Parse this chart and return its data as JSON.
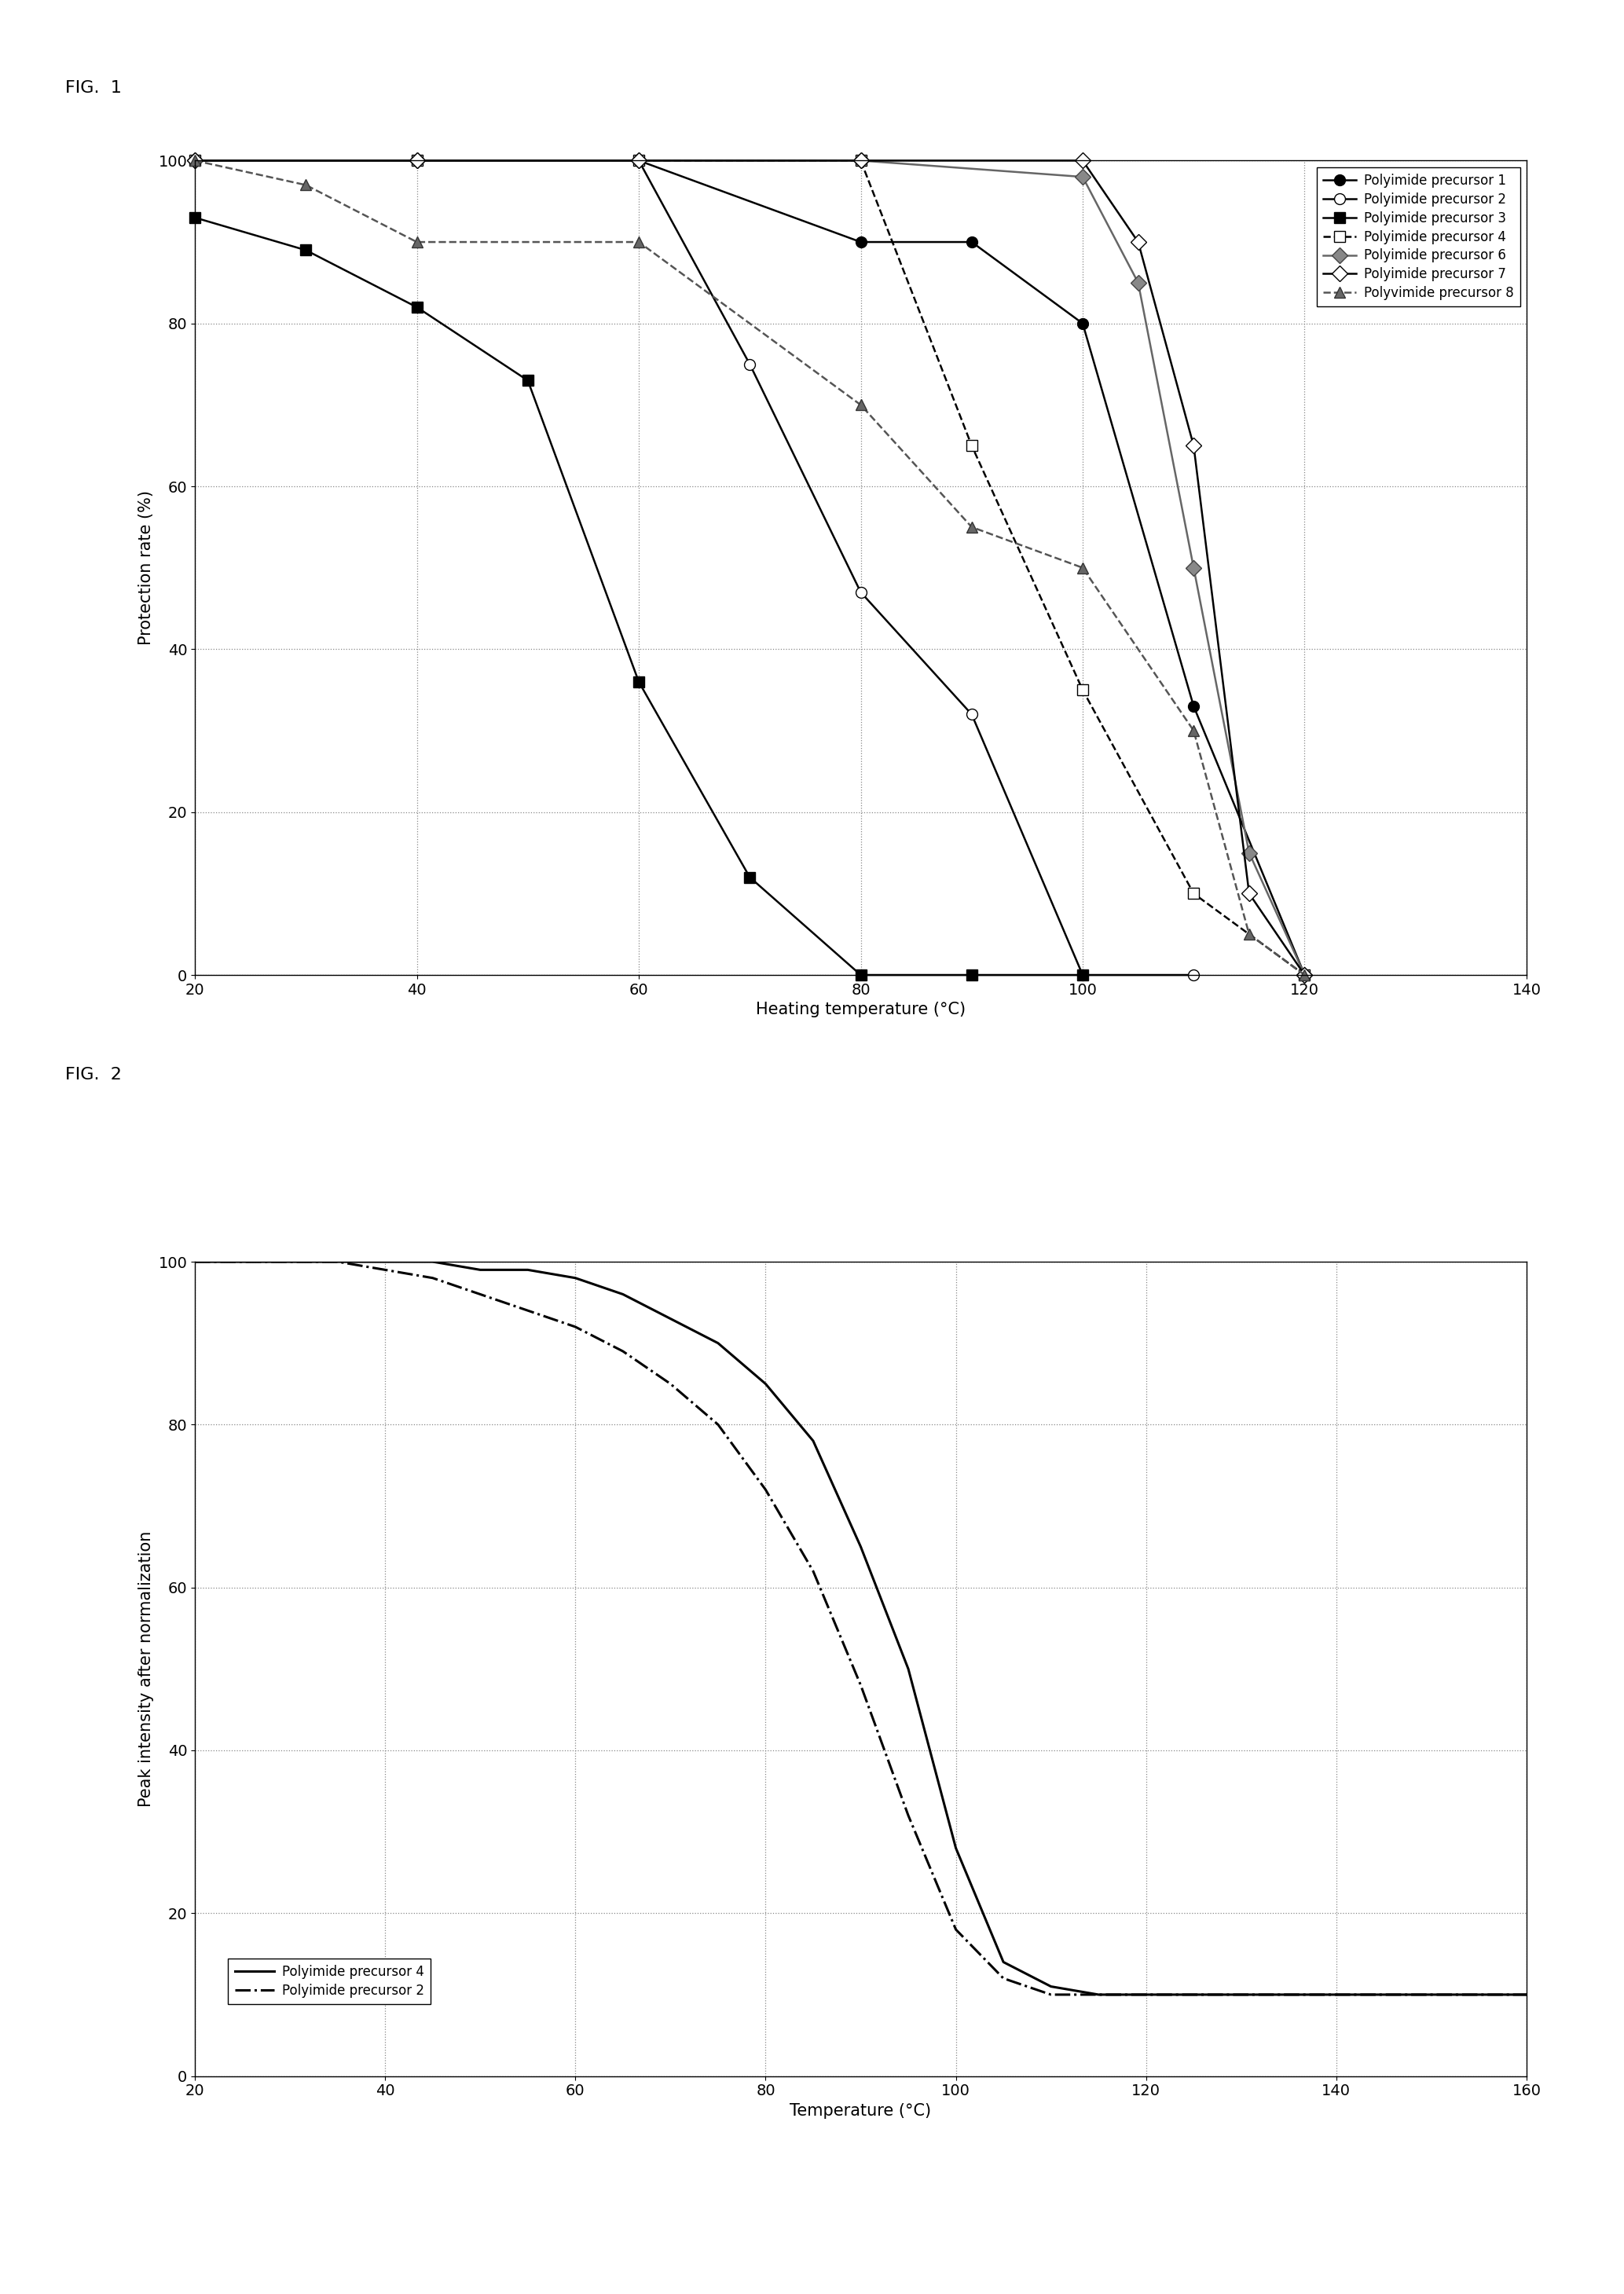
{
  "fig1": {
    "fig_label": "FIG.  1",
    "xlabel": "Heating temperature (°C)",
    "ylabel": "Protection rate (%)",
    "xlim": [
      20,
      140
    ],
    "ylim": [
      0,
      100
    ],
    "xticks": [
      20,
      40,
      60,
      80,
      100,
      120,
      140
    ],
    "yticks": [
      0,
      20,
      40,
      60,
      80,
      100
    ],
    "series": [
      {
        "label": "Polyimide precursor 1",
        "marker": "o",
        "mfc": "black",
        "mec": "black",
        "ms": 10,
        "ls": "-",
        "color": "black",
        "lw": 1.8,
        "x": [
          20,
          40,
          60,
          80,
          90,
          100,
          110,
          120
        ],
        "y": [
          100,
          100,
          100,
          90,
          90,
          80,
          33,
          0
        ]
      },
      {
        "label": "Polyimide precursor 2",
        "marker": "o",
        "mfc": "white",
        "mec": "black",
        "ms": 10,
        "ls": "-",
        "color": "black",
        "lw": 1.8,
        "x": [
          20,
          40,
          60,
          70,
          80,
          90,
          100,
          110
        ],
        "y": [
          100,
          100,
          100,
          75,
          47,
          32,
          0,
          0
        ]
      },
      {
        "label": "Polyimide precursor 3",
        "marker": "s",
        "mfc": "black",
        "mec": "black",
        "ms": 10,
        "ls": "-",
        "color": "black",
        "lw": 1.8,
        "x": [
          20,
          30,
          40,
          50,
          60,
          70,
          80,
          90,
          100
        ],
        "y": [
          93,
          89,
          82,
          73,
          36,
          12,
          0,
          0,
          0
        ]
      },
      {
        "label": "Polyimide precursor 4",
        "marker": "s",
        "mfc": "white",
        "mec": "black",
        "ms": 10,
        "ls": "--",
        "color": "black",
        "lw": 1.8,
        "x": [
          20,
          40,
          60,
          80,
          90,
          100,
          110,
          120
        ],
        "y": [
          100,
          100,
          100,
          100,
          65,
          35,
          10,
          0
        ]
      },
      {
        "label": "Polyimide precursor 6",
        "marker": "D",
        "mfc": "#888888",
        "mec": "#444444",
        "ms": 10,
        "ls": "-",
        "color": "#666666",
        "lw": 1.8,
        "x": [
          20,
          40,
          60,
          80,
          100,
          105,
          110,
          115,
          120
        ],
        "y": [
          100,
          100,
          100,
          100,
          98,
          85,
          50,
          15,
          0
        ]
      },
      {
        "label": "Polyimide precursor 7",
        "marker": "D",
        "mfc": "white",
        "mec": "black",
        "ms": 10,
        "ls": "-",
        "color": "black",
        "lw": 1.8,
        "x": [
          20,
          40,
          60,
          80,
          100,
          105,
          110,
          115,
          120
        ],
        "y": [
          100,
          100,
          100,
          100,
          100,
          90,
          65,
          10,
          0
        ]
      },
      {
        "label": "Polyvimide precursor 8",
        "marker": "^",
        "mfc": "#666666",
        "mec": "#333333",
        "ms": 10,
        "ls": "--",
        "color": "#555555",
        "lw": 1.8,
        "x": [
          20,
          30,
          40,
          60,
          80,
          90,
          100,
          110,
          115,
          120
        ],
        "y": [
          100,
          97,
          90,
          90,
          70,
          55,
          50,
          30,
          5,
          0
        ]
      }
    ]
  },
  "fig2": {
    "fig_label": "FIG.  2",
    "xlabel": "Temperature (°C)",
    "ylabel": "Peak intensity after normalization",
    "xlim": [
      20,
      160
    ],
    "ylim": [
      0,
      100
    ],
    "xticks": [
      20,
      40,
      60,
      80,
      100,
      120,
      140,
      160
    ],
    "yticks": [
      0,
      20,
      40,
      60,
      80,
      100
    ],
    "series": [
      {
        "label": "Polyimide precursor 4",
        "ls": "-",
        "color": "black",
        "lw": 2.2,
        "x": [
          20,
          30,
          35,
          40,
          45,
          50,
          55,
          60,
          65,
          70,
          75,
          80,
          85,
          90,
          95,
          100,
          105,
          110,
          115,
          120,
          130,
          140,
          150,
          160
        ],
        "y": [
          100,
          100,
          100,
          100,
          100,
          99,
          99,
          98,
          96,
          93,
          90,
          85,
          78,
          65,
          50,
          28,
          14,
          11,
          10,
          10,
          10,
          10,
          10,
          10
        ]
      },
      {
        "label": "Polyimide precursor 2",
        "ls": "-.",
        "color": "black",
        "lw": 2.2,
        "x": [
          20,
          30,
          35,
          40,
          45,
          50,
          55,
          60,
          65,
          70,
          75,
          80,
          85,
          90,
          95,
          100,
          105,
          110,
          115,
          120,
          130,
          140,
          150,
          160
        ],
        "y": [
          100,
          100,
          100,
          99,
          98,
          96,
          94,
          92,
          89,
          85,
          80,
          72,
          62,
          48,
          32,
          18,
          12,
          10,
          10,
          10,
          10,
          10,
          10,
          10
        ]
      }
    ]
  },
  "bg_color": "#ffffff",
  "fig_label_fontsize": 16,
  "axis_fontsize": 15,
  "tick_fontsize": 14,
  "legend_fontsize": 12
}
